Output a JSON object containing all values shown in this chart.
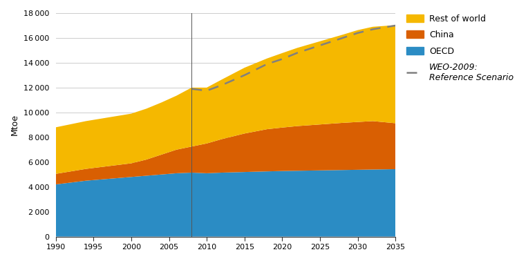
{
  "title": "",
  "ylabel": "Mtoe",
  "xlim": [
    1990,
    2035
  ],
  "ylim": [
    0,
    18000
  ],
  "yticks": [
    0,
    2000,
    4000,
    6000,
    8000,
    10000,
    12000,
    14000,
    16000,
    18000
  ],
  "xticks": [
    1990,
    1995,
    2000,
    2005,
    2010,
    2015,
    2020,
    2025,
    2030,
    2035
  ],
  "years": [
    1990,
    1992,
    1994,
    1996,
    1998,
    2000,
    2002,
    2004,
    2006,
    2008,
    2010,
    2012,
    2015,
    2018,
    2020,
    2022,
    2025,
    2028,
    2030,
    2032,
    2035
  ],
  "oecd": [
    4200,
    4350,
    4500,
    4600,
    4700,
    4800,
    4900,
    5000,
    5100,
    5150,
    5100,
    5150,
    5200,
    5250,
    5280,
    5300,
    5330,
    5360,
    5380,
    5400,
    5430
  ],
  "china": [
    850,
    900,
    950,
    1000,
    1050,
    1100,
    1300,
    1600,
    1900,
    2100,
    2400,
    2700,
    3100,
    3400,
    3500,
    3600,
    3700,
    3800,
    3850,
    3900,
    3700
  ],
  "row": [
    3750,
    3800,
    3850,
    3900,
    3950,
    4000,
    4100,
    4200,
    4350,
    4750,
    4500,
    4800,
    5300,
    5700,
    6000,
    6300,
    6700,
    7100,
    7400,
    7600,
    7900
  ],
  "weo_years": [
    2008,
    2010,
    2012,
    2015,
    2018,
    2020,
    2022,
    2025,
    2028,
    2030,
    2032,
    2035
  ],
  "weo_values": [
    11900,
    11750,
    12200,
    13000,
    13900,
    14300,
    14800,
    15400,
    16000,
    16400,
    16700,
    17000
  ],
  "color_oecd": "#2b8cc4",
  "color_china": "#d95f02",
  "color_row": "#f5b800",
  "color_weo": "#808080",
  "vline_x": 2008,
  "figsize": [
    7.64,
    3.78
  ],
  "dpi": 100
}
